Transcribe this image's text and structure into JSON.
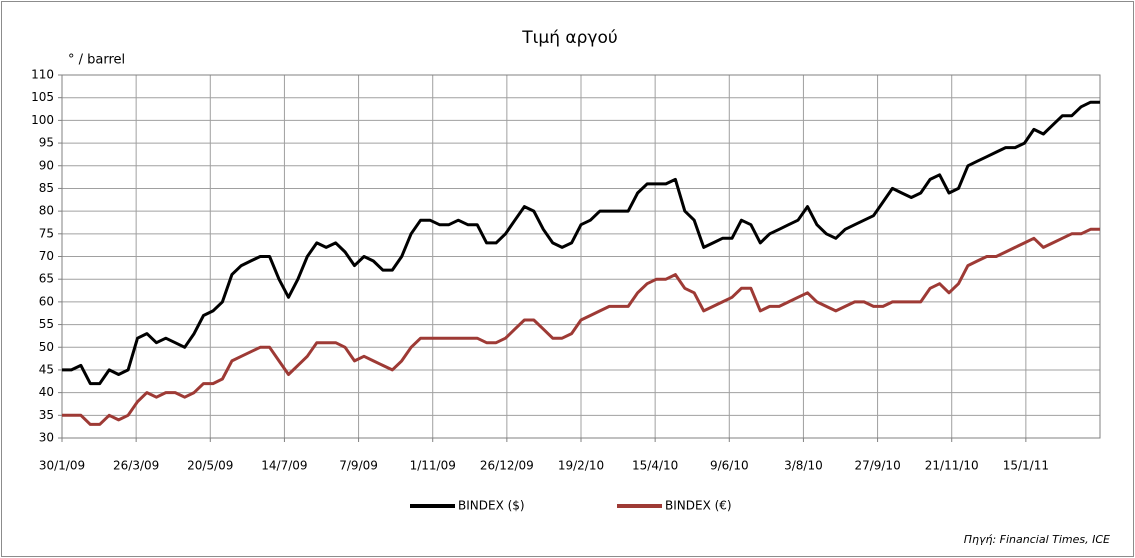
{
  "chart_data": {
    "type": "line",
    "title": "Τιμή αργού",
    "y_label": "° / barrel",
    "source": "Πηγή: Financial Times, ICE",
    "x": [
      "30/1/09",
      "6/2/09",
      "13/2/09",
      "20/2/09",
      "27/2/09",
      "6/3/09",
      "13/3/09",
      "20/3/09",
      "27/3/09",
      "3/4/09",
      "10/4/09",
      "17/4/09",
      "24/4/09",
      "1/5/09",
      "8/5/09",
      "15/5/09",
      "22/5/09",
      "29/5/09",
      "5/6/09",
      "12/6/09",
      "19/6/09",
      "26/6/09",
      "3/7/09",
      "10/7/09",
      "17/7/09",
      "24/7/09",
      "31/7/09",
      "7/8/09",
      "14/8/09",
      "21/8/09",
      "28/8/09",
      "4/9/09",
      "11/9/09",
      "18/9/09",
      "25/9/09",
      "2/10/09",
      "9/10/09",
      "16/10/09",
      "23/10/09",
      "30/10/09",
      "6/11/09",
      "13/11/09",
      "20/11/09",
      "27/11/09",
      "4/12/09",
      "11/12/09",
      "18/12/09",
      "25/12/09",
      "1/1/10",
      "8/1/10",
      "15/1/10",
      "22/1/10",
      "29/1/10",
      "5/2/10",
      "12/2/10",
      "19/2/10",
      "26/2/10",
      "5/3/10",
      "12/3/10",
      "19/3/10",
      "26/3/10",
      "2/4/10",
      "9/4/10",
      "16/4/10",
      "23/4/10",
      "30/4/10",
      "7/5/10",
      "14/5/10",
      "21/5/10",
      "28/5/10",
      "4/6/10",
      "11/6/10",
      "18/6/10",
      "25/6/10",
      "2/7/10",
      "9/7/10",
      "16/7/10",
      "23/7/10",
      "30/7/10",
      "6/8/10",
      "13/8/10",
      "20/8/10",
      "27/8/10",
      "3/9/10",
      "10/9/10",
      "17/9/10",
      "24/9/10",
      "1/10/10",
      "8/10/10",
      "15/10/10",
      "22/10/10",
      "29/10/10",
      "5/11/10",
      "12/11/10",
      "19/11/10",
      "26/11/10",
      "3/12/10",
      "10/12/10",
      "17/12/10",
      "24/12/10",
      "31/12/10",
      "7/1/11",
      "14/1/11",
      "21/1/11",
      "28/1/11",
      "4/2/11",
      "11/2/11",
      "18/2/11",
      "25/2/11",
      "4/3/11",
      "11/3/11"
    ],
    "series": [
      {
        "name": "BINDEX ($)",
        "color": "#000000",
        "values": [
          45,
          45,
          46,
          42,
          42,
          45,
          44,
          45,
          52,
          53,
          51,
          52,
          51,
          50,
          53,
          57,
          58,
          60,
          66,
          68,
          69,
          70,
          70,
          65,
          61,
          65,
          70,
          73,
          72,
          73,
          71,
          68,
          70,
          69,
          67,
          67,
          70,
          75,
          78,
          78,
          77,
          77,
          78,
          77,
          77,
          73,
          73,
          75,
          78,
          81,
          80,
          76,
          73,
          72,
          73,
          77,
          78,
          80,
          80,
          80,
          80,
          84,
          86,
          86,
          86,
          87,
          80,
          78,
          72,
          73,
          74,
          74,
          78,
          77,
          73,
          75,
          76,
          77,
          78,
          81,
          77,
          75,
          74,
          76,
          77,
          78,
          79,
          82,
          85,
          84,
          83,
          84,
          87,
          88,
          84,
          85,
          90,
          91,
          92,
          93,
          94,
          94,
          95,
          98,
          97,
          99,
          101,
          101,
          103,
          104,
          104
        ]
      },
      {
        "name": "BINDEX (€)",
        "color": "#9e3a35",
        "values": [
          35,
          35,
          35,
          33,
          33,
          35,
          34,
          35,
          38,
          40,
          39,
          40,
          40,
          39,
          40,
          42,
          42,
          43,
          47,
          48,
          49,
          50,
          50,
          47,
          44,
          46,
          48,
          51,
          51,
          51,
          50,
          47,
          48,
          47,
          46,
          45,
          47,
          50,
          52,
          52,
          52,
          52,
          52,
          52,
          52,
          51,
          51,
          52,
          54,
          56,
          56,
          54,
          52,
          52,
          53,
          56,
          57,
          58,
          59,
          59,
          59,
          62,
          64,
          65,
          65,
          66,
          63,
          62,
          58,
          59,
          60,
          61,
          63,
          63,
          58,
          59,
          59,
          60,
          61,
          62,
          60,
          59,
          58,
          59,
          60,
          60,
          59,
          59,
          60,
          60,
          60,
          60,
          63,
          64,
          62,
          64,
          68,
          69,
          70,
          70,
          71,
          72,
          73,
          74,
          72,
          73,
          74,
          75,
          75,
          76,
          76
        ]
      }
    ],
    "xlim": [
      "30/1/09",
      "11/3/11"
    ],
    "xticks": [
      "30/1/09",
      "26/3/09",
      "20/5/09",
      "14/7/09",
      "7/9/09",
      "1/11/09",
      "26/12/09",
      "19/2/10",
      "15/4/10",
      "9/6/10",
      "3/8/10",
      "27/9/10",
      "21/11/10",
      "15/1/11"
    ],
    "ylim": [
      30,
      110
    ],
    "yticks": [
      30,
      35,
      40,
      45,
      50,
      55,
      60,
      65,
      70,
      75,
      80,
      85,
      90,
      95,
      100,
      105,
      110
    ],
    "grid": true,
    "legend": "bottom"
  }
}
